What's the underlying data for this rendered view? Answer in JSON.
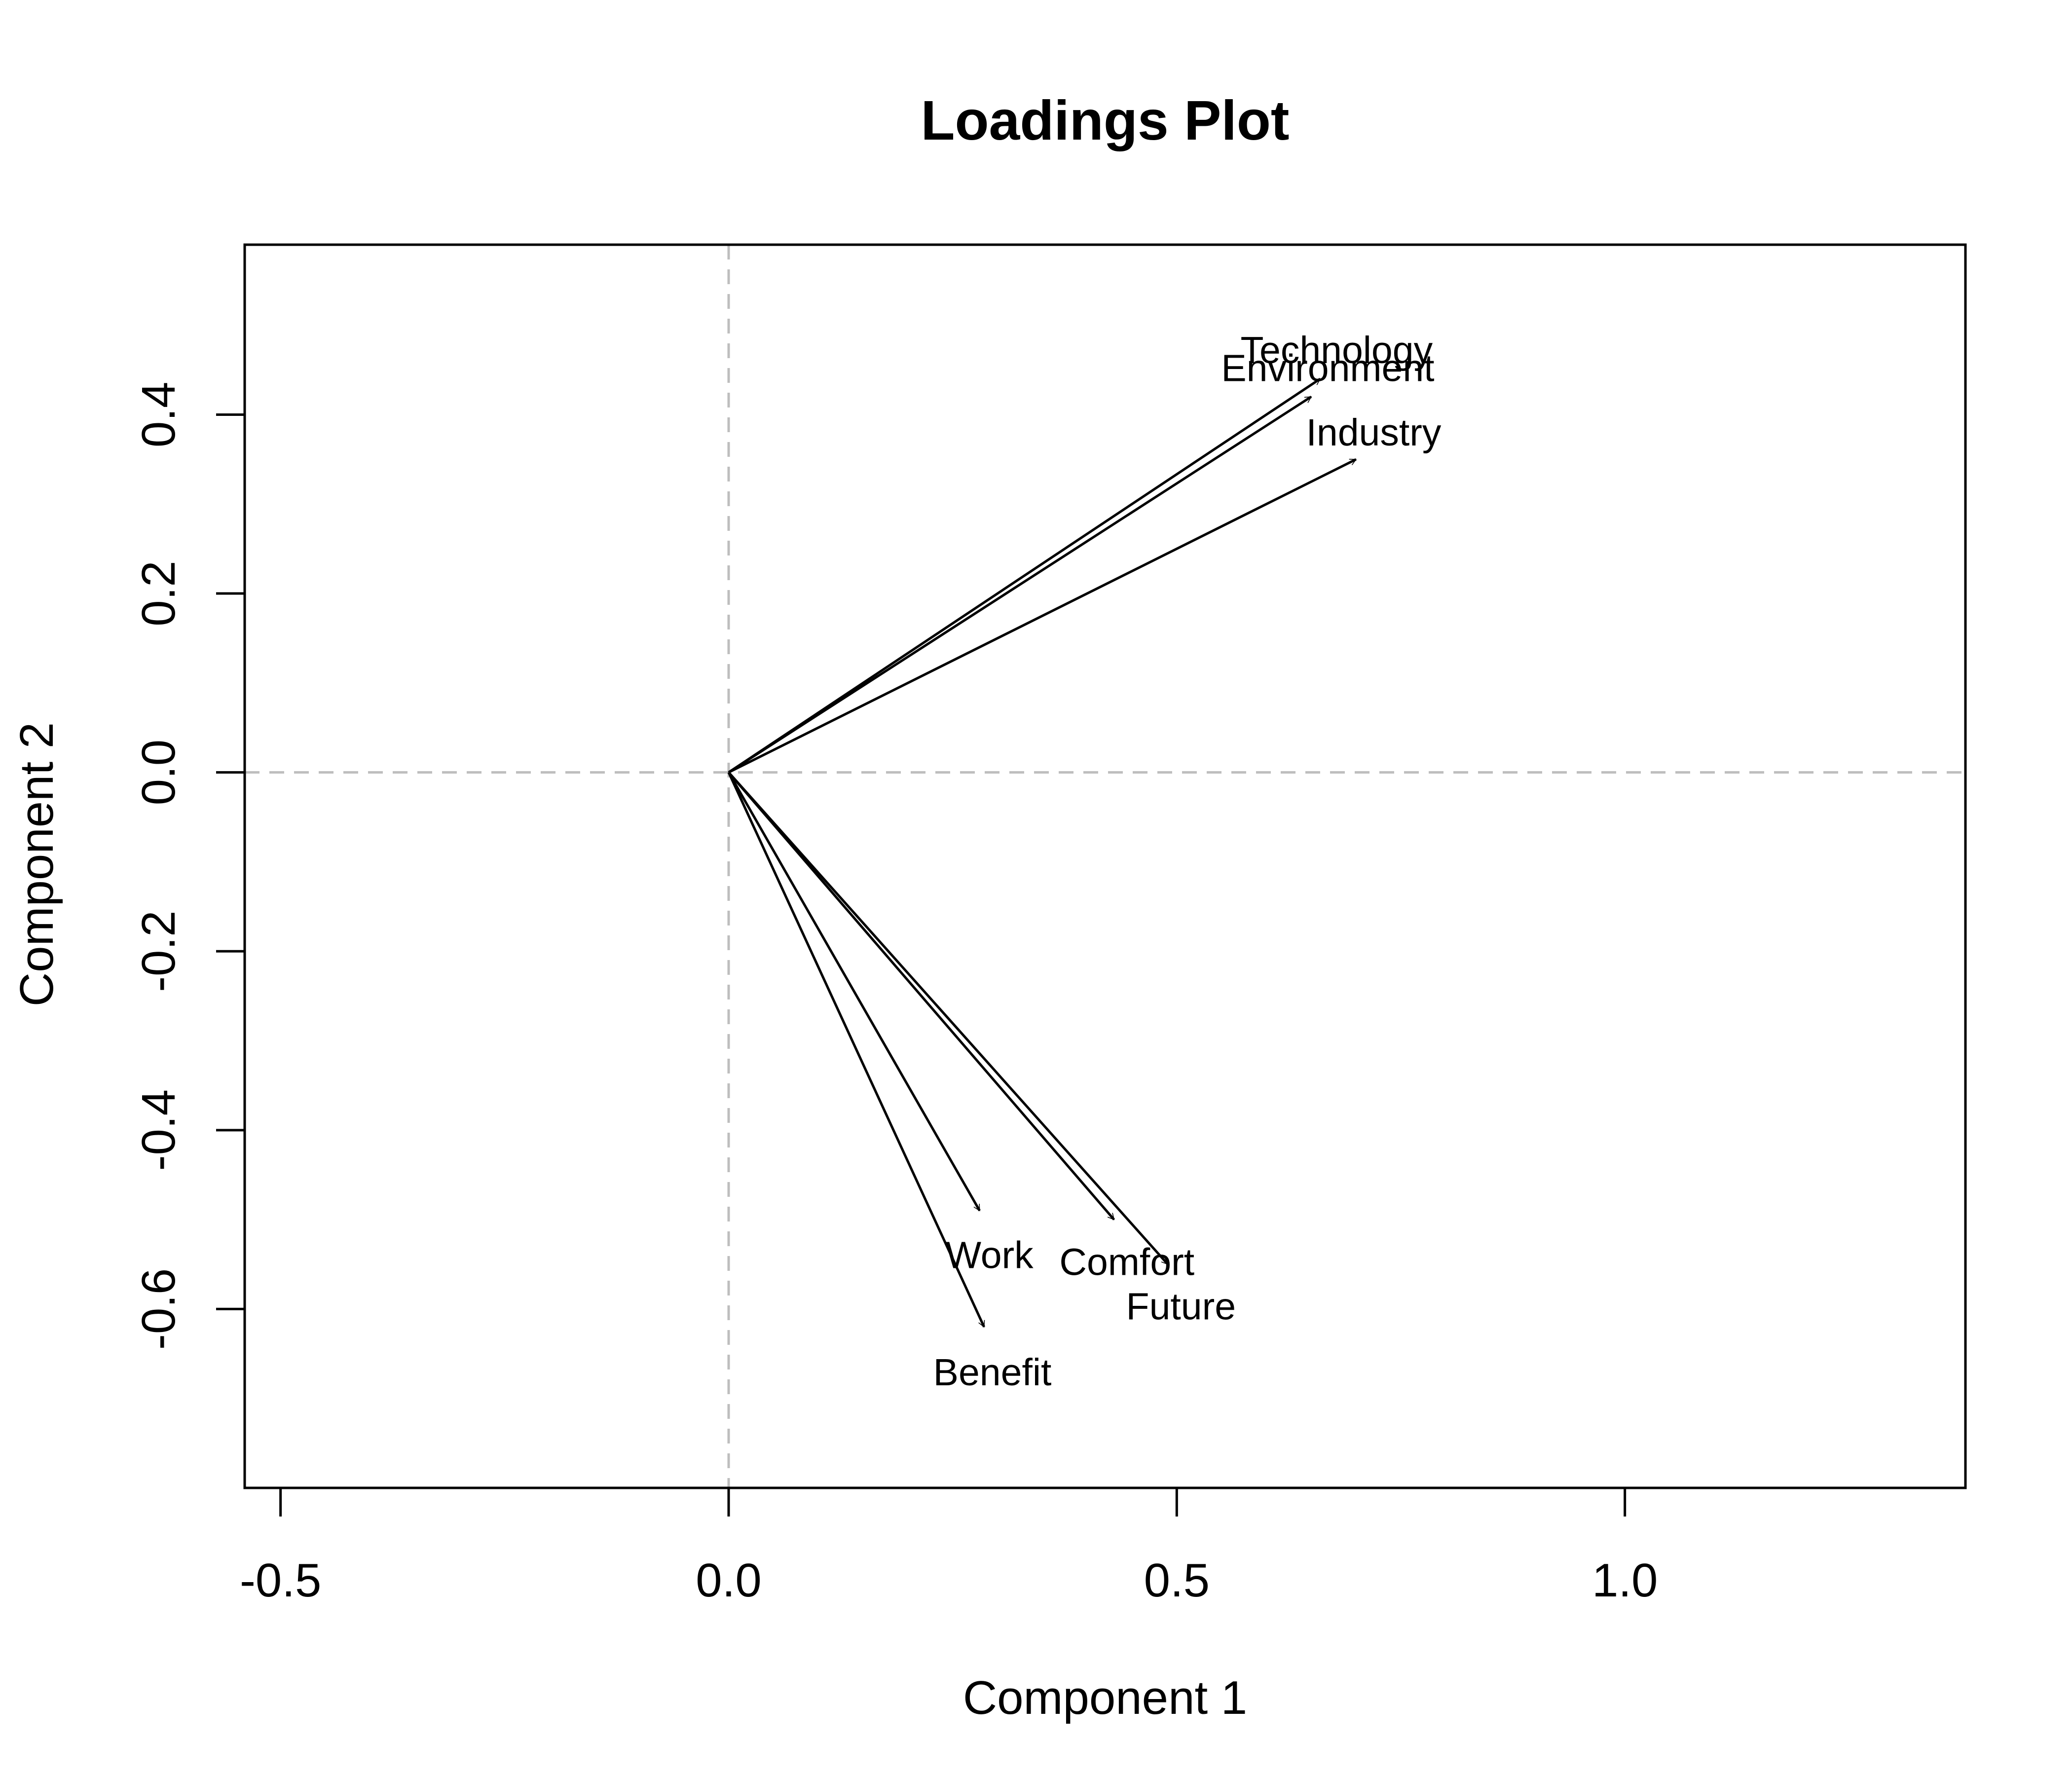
{
  "chart_data": {
    "type": "scatter",
    "subtype": "loadings-arrows",
    "title": "Loadings Plot",
    "xlabel": "Component 1",
    "ylabel": "Component 2",
    "xlim": [
      -0.54,
      1.38
    ],
    "ylim": [
      -0.8,
      0.59
    ],
    "x_ticks": [
      {
        "value": -0.5,
        "label": "-0.5"
      },
      {
        "value": 0.0,
        "label": "0.0"
      },
      {
        "value": 0.5,
        "label": "0.5"
      },
      {
        "value": 1.0,
        "label": "1.0"
      }
    ],
    "y_ticks": [
      {
        "value": -0.6,
        "label": "-0.6"
      },
      {
        "value": -0.4,
        "label": "-0.4"
      },
      {
        "value": -0.2,
        "label": "-0.2"
      },
      {
        "value": 0.0,
        "label": "0.0"
      },
      {
        "value": 0.2,
        "label": "0.2"
      },
      {
        "value": 0.4,
        "label": "0.4"
      }
    ],
    "reference_lines": {
      "x": 0,
      "y": 0,
      "style": "dashed",
      "color": "#bebebe"
    },
    "grid": false,
    "legend": "none",
    "arrow_color": "#000000",
    "series": [
      {
        "name": "Technology",
        "x": 0.66,
        "y": 0.44
      },
      {
        "name": "Environment",
        "x": 0.65,
        "y": 0.42
      },
      {
        "name": "Industry",
        "x": 0.7,
        "y": 0.35
      },
      {
        "name": "Work",
        "x": 0.28,
        "y": -0.49
      },
      {
        "name": "Comfort",
        "x": 0.43,
        "y": -0.5
      },
      {
        "name": "Future",
        "x": 0.49,
        "y": -0.55
      },
      {
        "name": "Benefit",
        "x": 0.285,
        "y": -0.62
      }
    ]
  }
}
